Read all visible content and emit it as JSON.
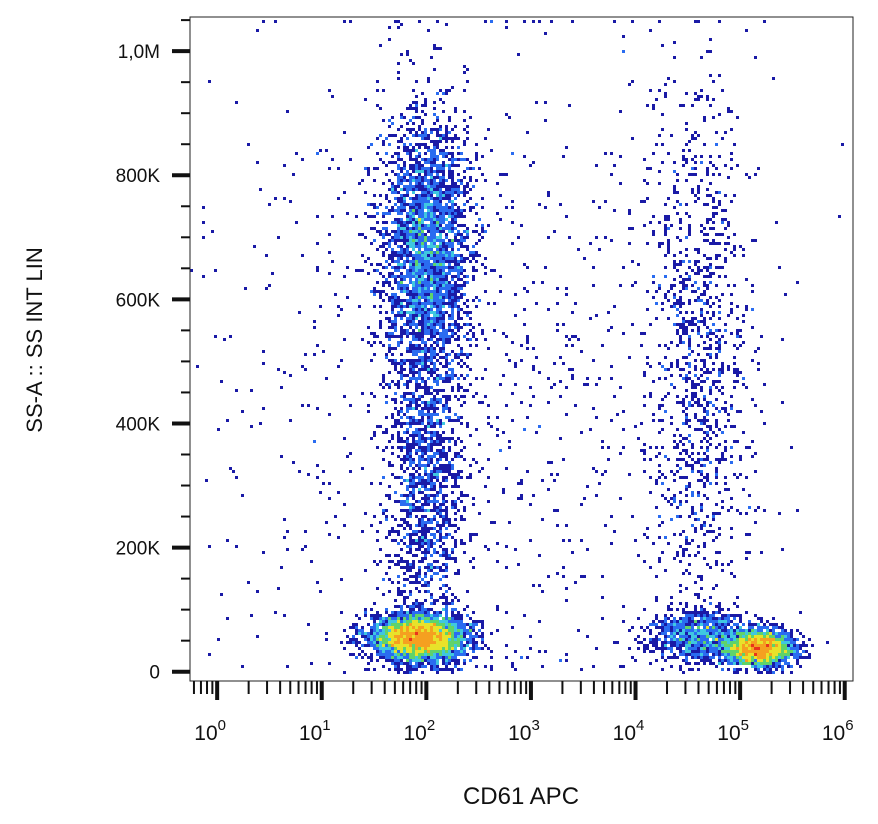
{
  "chart_data": {
    "type": "scatter",
    "subtype": "flow-cytometry-density-dot-plot",
    "xlabel": "CD61 APC",
    "ylabel": "SS-A :: SS INT LIN",
    "x_scale": "log",
    "y_scale": "linear",
    "xlim": [
      0.55,
      1200000
    ],
    "ylim": [
      -15000,
      1055000
    ],
    "x_ticks": [
      {
        "value": 1,
        "base": "10",
        "exp": "0"
      },
      {
        "value": 10,
        "base": "10",
        "exp": "1"
      },
      {
        "value": 100,
        "base": "10",
        "exp": "2"
      },
      {
        "value": 1000,
        "base": "10",
        "exp": "3"
      },
      {
        "value": 10000,
        "base": "10",
        "exp": "4"
      },
      {
        "value": 100000,
        "base": "10",
        "exp": "5"
      },
      {
        "value": 1000000,
        "base": "10",
        "exp": "6"
      }
    ],
    "y_ticks": [
      {
        "value": 0,
        "label": "0"
      },
      {
        "value": 200000,
        "label": "200K"
      },
      {
        "value": 400000,
        "label": "400K"
      },
      {
        "value": 600000,
        "label": "600K"
      },
      {
        "value": 800000,
        "label": "800K"
      },
      {
        "value": 1000000,
        "label": "1,0M"
      }
    ],
    "color_scale": [
      "#1a1aa6",
      "#2a6cf0",
      "#3fc7e0",
      "#5fd36a",
      "#e8e22a",
      "#f5a020",
      "#e8341c"
    ],
    "populations": [
      {
        "x_center": 100,
        "x_log_sd": 0.22,
        "y_center": 680000,
        "y_sd": 110000,
        "weight": 3200
      },
      {
        "x_center": 100,
        "x_log_sd": 0.18,
        "y_center": 300000,
        "y_sd": 140000,
        "weight": 1400
      },
      {
        "x_center": 85,
        "x_log_sd": 0.22,
        "y_center": 55000,
        "y_sd": 18000,
        "weight": 4200
      },
      {
        "x_center": 150000,
        "x_log_sd": 0.16,
        "y_center": 38000,
        "y_sd": 14000,
        "weight": 2600
      },
      {
        "x_center": 40000,
        "x_log_sd": 0.25,
        "y_center": 60000,
        "y_sd": 20000,
        "weight": 900
      },
      {
        "x_center": 40000,
        "x_log_sd": 0.25,
        "y_center": 500000,
        "y_sd": 230000,
        "weight": 1100
      },
      {
        "x_center": 300,
        "x_log_sd": 1.4,
        "y_center": 450000,
        "y_sd": 300000,
        "weight": 900
      }
    ]
  }
}
